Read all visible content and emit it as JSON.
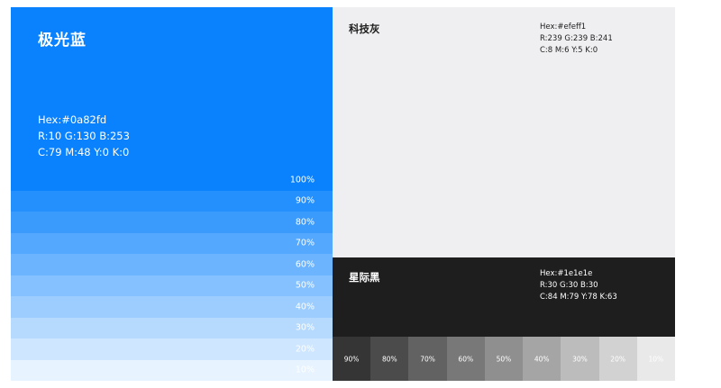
{
  "blue": {
    "name": "极光蓝",
    "hex": "Hex:#0a82fd",
    "rgb": "R:10 G:130 B:253",
    "cmyk": "C:79 M:48 Y:0 K:0",
    "color": "#0a82fd",
    "tints": [
      {
        "label": "100%",
        "color": "#0a82fd"
      },
      {
        "label": "90%",
        "color": "#2390fd"
      },
      {
        "label": "80%",
        "color": "#3b9bfd"
      },
      {
        "label": "70%",
        "color": "#54a8fe"
      },
      {
        "label": "60%",
        "color": "#6cb4fe"
      },
      {
        "label": "50%",
        "color": "#85c1fe"
      },
      {
        "label": "40%",
        "color": "#9dcdfe"
      },
      {
        "label": "30%",
        "color": "#b6dafe"
      },
      {
        "label": "20%",
        "color": "#cee6ff"
      },
      {
        "label": "10%",
        "color": "#e7f3ff"
      }
    ]
  },
  "gray": {
    "name": "科技灰",
    "hex": "Hex:#efeff1",
    "rgb": "R:239 G:239 B:241",
    "cmyk": "C:8 M:6 Y:5 K:0",
    "color": "#efeff1",
    "text_color": "#1e1e1e"
  },
  "black": {
    "name": "星际黑",
    "hex": "Hex:#1e1e1e",
    "rgb": "R:30 G:30 B:30",
    "cmyk": "C:84 M:79 Y:78 K:63",
    "color": "#1e1e1e",
    "text_color": "#ffffff",
    "tints": [
      {
        "label": "90%",
        "color": "#353535"
      },
      {
        "label": "80%",
        "color": "#4b4b4b"
      },
      {
        "label": "70%",
        "color": "#626262"
      },
      {
        "label": "60%",
        "color": "#787878"
      },
      {
        "label": "50%",
        "color": "#8f8f8f"
      },
      {
        "label": "40%",
        "color": "#a5a5a5"
      },
      {
        "label": "30%",
        "color": "#bcbcbc"
      },
      {
        "label": "20%",
        "color": "#d2d2d2"
      },
      {
        "label": "10%",
        "color": "#e9e9e9"
      }
    ]
  }
}
